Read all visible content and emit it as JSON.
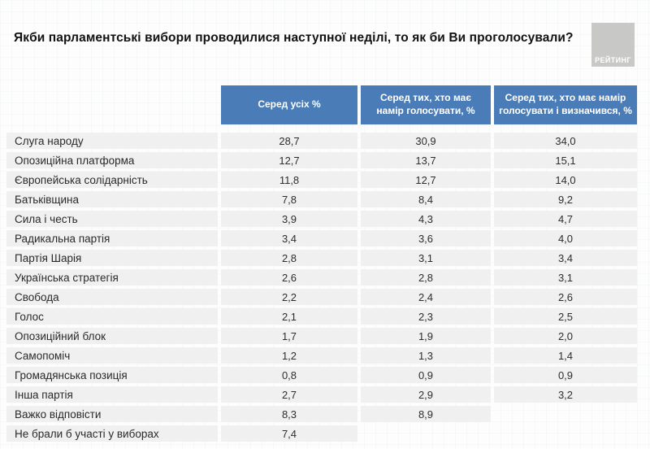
{
  "logo_text": "РЕЙТИНГ",
  "colors": {
    "header_bg": "#4a7db8",
    "row_bg": "#f0f0f0",
    "logo_bg": "#c8c8c6"
  },
  "chart_data": {
    "type": "table",
    "title": "Якби парламентські вибори проводилися наступної неділі, то як би Ви проголосували?",
    "columns": [
      "Серед усіх %",
      "Серед тих, хто має намір голосувати, %",
      "Серед тих, хто має намір голосувати і визначився, %"
    ],
    "rows": [
      {
        "name": "Слуга народу",
        "values": [
          "28,7",
          "30,9",
          "34,0"
        ]
      },
      {
        "name": "Опозиційна платформа",
        "values": [
          "12,7",
          "13,7",
          "15,1"
        ]
      },
      {
        "name": "Європейська солідарність",
        "values": [
          "11,8",
          "12,7",
          "14,0"
        ]
      },
      {
        "name": "Батьківщина",
        "values": [
          "7,8",
          "8,4",
          "9,2"
        ]
      },
      {
        "name": "Сила і честь",
        "values": [
          "3,9",
          "4,3",
          "4,7"
        ]
      },
      {
        "name": "Радикальна партія",
        "values": [
          "3,4",
          "3,6",
          "4,0"
        ]
      },
      {
        "name": "Партія Шарія",
        "values": [
          "2,8",
          "3,1",
          "3,4"
        ]
      },
      {
        "name": "Українська стратегія",
        "values": [
          "2,6",
          "2,8",
          "3,1"
        ]
      },
      {
        "name": "Свобода",
        "values": [
          "2,2",
          "2,4",
          "2,6"
        ]
      },
      {
        "name": "Голос",
        "values": [
          "2,1",
          "2,3",
          "2,5"
        ]
      },
      {
        "name": "Опозиційний блок",
        "values": [
          "1,7",
          "1,9",
          "2,0"
        ]
      },
      {
        "name": "Самопоміч",
        "values": [
          "1,2",
          "1,3",
          "1,4"
        ]
      },
      {
        "name": "Громадянська позиція",
        "values": [
          "0,8",
          "0,9",
          "0,9"
        ]
      },
      {
        "name": "Інша партія",
        "values": [
          "2,7",
          "2,9",
          "3,2"
        ]
      },
      {
        "name": "Важко відповісти",
        "values": [
          "8,3",
          "8,9",
          null
        ]
      },
      {
        "name": "Не брали б участі у виборах",
        "values": [
          "7,4",
          null,
          null
        ]
      }
    ]
  }
}
